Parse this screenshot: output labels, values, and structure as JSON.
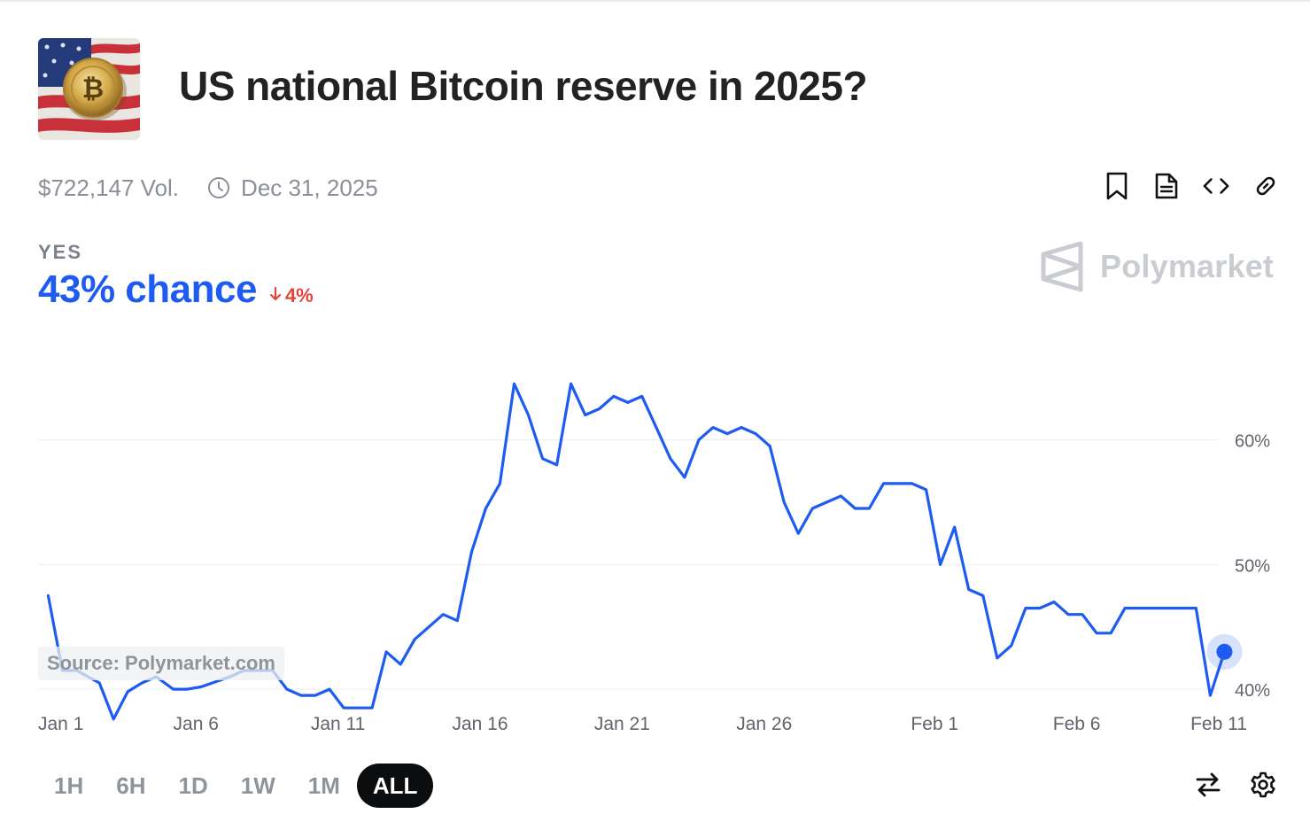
{
  "market": {
    "title": "US national Bitcoin reserve in 2025?",
    "volume": "$722,147 Vol.",
    "end_date": "Dec 31, 2025",
    "outcome_label": "YES",
    "chance_text": "43% chance",
    "change_text": "4%",
    "change_direction": "down",
    "brand": "Polymarket",
    "source_note": "Source: Polymarket.com"
  },
  "toolbar": {
    "icons": [
      "bookmark-icon",
      "document-icon",
      "embed-code-icon",
      "link-icon"
    ]
  },
  "time_ranges": {
    "options": [
      "1H",
      "6H",
      "1D",
      "1W",
      "1M",
      "ALL"
    ],
    "selected": "ALL"
  },
  "bottom_tools": {
    "icons": [
      "swap-icon",
      "settings-gear-icon"
    ]
  },
  "colors": {
    "accent": "#1e5bf0",
    "negative": "#e2453b",
    "muted": "#8f949b",
    "grid": "#eef0f2"
  },
  "chart_data": {
    "type": "line",
    "title": "",
    "xlabel": "",
    "ylabel": "",
    "ylim": [
      35.6,
      69
    ],
    "y_ticks": [
      40,
      50,
      60
    ],
    "y_tick_labels": [
      "40%",
      "50%",
      "60%"
    ],
    "x_range": [
      0.6,
      42.0
    ],
    "x_ticks": [
      {
        "x": 1,
        "label": "Jan 1"
      },
      {
        "x": 6,
        "label": "Jan 6"
      },
      {
        "x": 11,
        "label": "Jan 11"
      },
      {
        "x": 16,
        "label": "Jan 16"
      },
      {
        "x": 21,
        "label": "Jan 21"
      },
      {
        "x": 26,
        "label": "Jan 26"
      },
      {
        "x": 32,
        "label": "Feb 1"
      },
      {
        "x": 37,
        "label": "Feb 6"
      },
      {
        "x": 42,
        "label": "Feb 11"
      }
    ],
    "grid": true,
    "y_axis_side": "right",
    "series": [
      {
        "name": "",
        "color": "#1e5bf0",
        "points": [
          [
            0.8,
            47.5
          ],
          [
            1.3,
            41.5
          ],
          [
            1.8,
            41.5
          ],
          [
            2.6,
            40.5
          ],
          [
            3.1,
            37.6
          ],
          [
            3.6,
            39.8
          ],
          [
            4.1,
            40.5
          ],
          [
            4.6,
            41.0
          ],
          [
            5.2,
            40.0
          ],
          [
            5.7,
            40.0
          ],
          [
            6.2,
            40.2
          ],
          [
            7.2,
            41.0
          ],
          [
            7.7,
            41.5
          ],
          [
            8.2,
            41.5
          ],
          [
            8.7,
            41.5
          ],
          [
            9.2,
            40.0
          ],
          [
            9.7,
            39.5
          ],
          [
            10.2,
            39.5
          ],
          [
            10.7,
            40.0
          ],
          [
            11.2,
            38.5
          ],
          [
            11.7,
            38.5
          ],
          [
            12.2,
            38.5
          ],
          [
            12.7,
            43.0
          ],
          [
            13.2,
            42.0
          ],
          [
            13.7,
            44.0
          ],
          [
            14.2,
            45.0
          ],
          [
            14.7,
            46.0
          ],
          [
            15.2,
            45.5
          ],
          [
            15.7,
            51.0
          ],
          [
            16.2,
            54.5
          ],
          [
            16.7,
            56.5
          ],
          [
            17.2,
            64.5
          ],
          [
            17.7,
            62.0
          ],
          [
            18.2,
            58.5
          ],
          [
            18.7,
            58.0
          ],
          [
            19.2,
            64.5
          ],
          [
            19.7,
            62.0
          ],
          [
            20.2,
            62.5
          ],
          [
            20.7,
            63.5
          ],
          [
            21.2,
            63.0
          ],
          [
            21.7,
            63.5
          ],
          [
            22.2,
            61.0
          ],
          [
            22.7,
            58.5
          ],
          [
            23.2,
            57.0
          ],
          [
            23.7,
            60.0
          ],
          [
            24.2,
            61.0
          ],
          [
            24.7,
            60.5
          ],
          [
            25.2,
            61.0
          ],
          [
            25.7,
            60.5
          ],
          [
            26.2,
            59.5
          ],
          [
            26.7,
            55.0
          ],
          [
            27.2,
            52.5
          ],
          [
            27.7,
            54.5
          ],
          [
            28.2,
            55.0
          ],
          [
            28.7,
            55.5
          ],
          [
            29.2,
            54.5
          ],
          [
            29.7,
            54.5
          ],
          [
            30.2,
            56.5
          ],
          [
            30.7,
            56.5
          ],
          [
            31.2,
            56.5
          ],
          [
            31.7,
            56.0
          ],
          [
            32.2,
            50.0
          ],
          [
            32.7,
            53.0
          ],
          [
            33.2,
            48.0
          ],
          [
            33.7,
            47.5
          ],
          [
            34.2,
            42.5
          ],
          [
            34.7,
            43.5
          ],
          [
            35.2,
            46.5
          ],
          [
            35.7,
            46.5
          ],
          [
            36.2,
            47.0
          ],
          [
            36.7,
            46.0
          ],
          [
            37.2,
            46.0
          ],
          [
            37.7,
            44.5
          ],
          [
            38.2,
            44.5
          ],
          [
            38.7,
            46.5
          ],
          [
            39.2,
            46.5
          ],
          [
            39.7,
            46.5
          ],
          [
            40.2,
            46.5
          ],
          [
            40.7,
            46.5
          ],
          [
            41.2,
            46.5
          ],
          [
            41.7,
            39.5
          ],
          [
            42.2,
            43.0
          ]
        ]
      }
    ],
    "last_point": [
      42.2,
      43.0
    ]
  }
}
